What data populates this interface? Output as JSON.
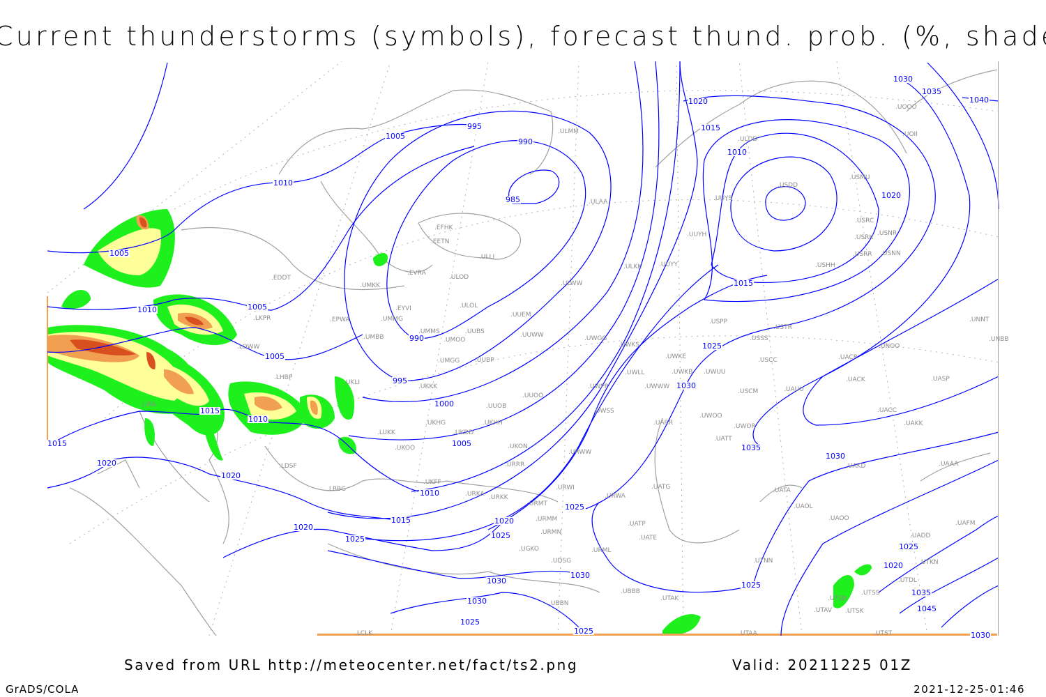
{
  "title": "Current thunderstorms (symbols), forecast thund. prob. (%, shaded)",
  "footer": {
    "saved": "Saved from URL http://meteocenter.net/fact/ts2.png",
    "valid": "Valid: 20211225 01Z",
    "software": "GrADS/COLA",
    "timestamp": "2021-12-25-01:46"
  },
  "colors": {
    "isobar": "#0000ff",
    "coastline": "#a0a0a0",
    "prob_low": "#1ef01e",
    "prob_mid": "#ffff99",
    "prob_high": "#f0a050",
    "prob_max": "#d85020"
  },
  "isobar_labels": [
    "1005",
    "1010",
    "1010",
    "1005",
    "995",
    "990",
    "985",
    "1005",
    "1005",
    "990",
    "995",
    "1000",
    "1005",
    "1010",
    "1015",
    "1015",
    "1010",
    "1015",
    "1020",
    "1020",
    "1020",
    "1025",
    "1020",
    "1025",
    "1025",
    "1030",
    "1030",
    "1025",
    "1025",
    "1030",
    "1030",
    "1025",
    "1035",
    "1030",
    "1025",
    "1015",
    "1020",
    "1010",
    "1015",
    "1020",
    "1030",
    "1035",
    "1040",
    "1025",
    "1020",
    "1035",
    "1045",
    "1030"
  ],
  "stations": [
    "ULMM",
    "ULDD",
    "UOOO",
    "UOII",
    "USDD",
    "USMU",
    "ULAA",
    "UUYS",
    "USRC",
    "USRK",
    "USNR",
    "USRR",
    "USNN",
    "USHH",
    "UUYH",
    "EFHK",
    "EETN",
    "ULLI",
    "UUYY",
    "ULKK",
    "EVRA",
    "ULOD",
    "EDDT",
    "UMKK",
    "ULWW",
    "ULOL",
    "EYVI",
    "LKPR",
    "UUEM",
    "EPWA",
    "UMMG",
    "USPP",
    "UNNT",
    "USTR",
    "UMMS",
    "UUBS",
    "UMOO",
    "UUWW",
    "UMBB",
    "USSS",
    "UWGG",
    "UWKS",
    "UNOO",
    "UNBB",
    "UACP",
    "UWKE",
    "USCC",
    "UMGG",
    "UUBP",
    "UKLI",
    "LOWW",
    "LHBP",
    "UWLL",
    "UWKB",
    "UWUU",
    "UACK",
    "UASP",
    "UKKK",
    "UWPP",
    "UWWW",
    "USCM",
    "UAUU",
    "UUOO",
    "LIRA",
    "UUOB",
    "UACC",
    "UWSS",
    "UKHG",
    "UARR",
    "UWOO",
    "UWOR",
    "UAKK",
    "UKDD",
    "UKHH",
    "LUKK",
    "UKOO",
    "UKON",
    "URWW",
    "UATT",
    "LDSF",
    "URRR",
    "UAKD",
    "UAAA",
    "UKFF",
    "URKA",
    "URKK",
    "URWI",
    "LBBG",
    "UATG",
    "URWA",
    "UATA",
    "UAOL",
    "URMT",
    "URMM",
    "UAOO",
    "UAFM",
    "UATP",
    "URMN",
    "UATE",
    "UADD",
    "UGKO",
    "URML",
    "UDSG",
    "UTNN",
    "UTKN",
    "UBBB",
    "UTAK",
    "UBBN",
    "UTDL",
    "UTSB",
    "UTSS",
    "UTAV",
    "UTSK",
    "UTAA",
    "LCLK",
    "UTST"
  ]
}
